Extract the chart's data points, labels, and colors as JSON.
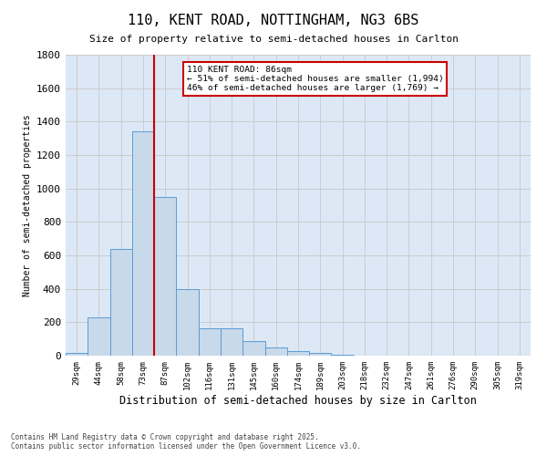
{
  "title1": "110, KENT ROAD, NOTTINGHAM, NG3 6BS",
  "title2": "Size of property relative to semi-detached houses in Carlton",
  "xlabel": "Distribution of semi-detached houses by size in Carlton",
  "ylabel": "Number of semi-detached properties",
  "categories": [
    "29sqm",
    "44sqm",
    "58sqm",
    "73sqm",
    "87sqm",
    "102sqm",
    "116sqm",
    "131sqm",
    "145sqm",
    "160sqm",
    "174sqm",
    "189sqm",
    "203sqm",
    "218sqm",
    "232sqm",
    "247sqm",
    "261sqm",
    "276sqm",
    "290sqm",
    "305sqm",
    "319sqm"
  ],
  "values": [
    15,
    230,
    640,
    1340,
    950,
    400,
    165,
    165,
    85,
    50,
    25,
    15,
    5,
    2,
    1,
    1,
    0,
    0,
    0,
    0,
    0
  ],
  "bar_color": "#c8d9ea",
  "bar_edge_color": "#5b9bd5",
  "red_line_index": 3,
  "red_line_label": "110 KENT ROAD: 86sqm",
  "annotation_smaller": "← 51% of semi-detached houses are smaller (1,994)",
  "annotation_larger": "46% of semi-detached houses are larger (1,769) →",
  "annotation_box_color": "#ffffff",
  "annotation_box_edge_color": "#cc0000",
  "ylim": [
    0,
    1800
  ],
  "yticks": [
    0,
    200,
    400,
    600,
    800,
    1000,
    1200,
    1400,
    1600,
    1800
  ],
  "grid_color": "#cccccc",
  "plot_bg_color": "#dce8f5",
  "fig_bg_color": "#ffffff",
  "footnote1": "Contains HM Land Registry data © Crown copyright and database right 2025.",
  "footnote2": "Contains public sector information licensed under the Open Government Licence v3.0."
}
